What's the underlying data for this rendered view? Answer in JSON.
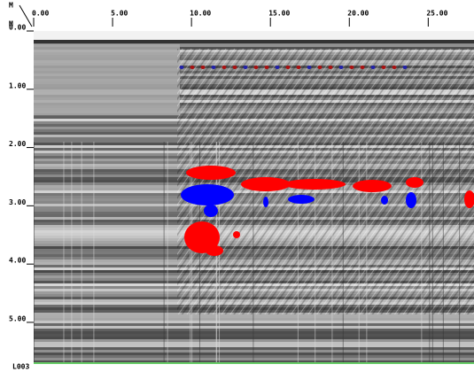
{
  "x_axis": {
    "unit": "M",
    "xlim": [
      0,
      27.9
    ],
    "ticks": [
      {
        "value": 0,
        "label": "0.00"
      },
      {
        "value": 5,
        "label": "5.00"
      },
      {
        "value": 10,
        "label": "10.00"
      },
      {
        "value": 15,
        "label": "15.00"
      },
      {
        "value": 20,
        "label": "20.00"
      },
      {
        "value": 25,
        "label": "25.00"
      }
    ]
  },
  "y_axis": {
    "unit": "M",
    "ylim": [
      0,
      5.7
    ],
    "ticks": [
      {
        "value": 0,
        "label": "0.00"
      },
      {
        "value": 1,
        "label": "1.00"
      },
      {
        "value": 2,
        "label": "2.00"
      },
      {
        "value": 3,
        "label": "3.00"
      },
      {
        "value": 4,
        "label": "4.00"
      },
      {
        "value": 5,
        "label": "5.00"
      }
    ]
  },
  "line_label": "L003"
}
